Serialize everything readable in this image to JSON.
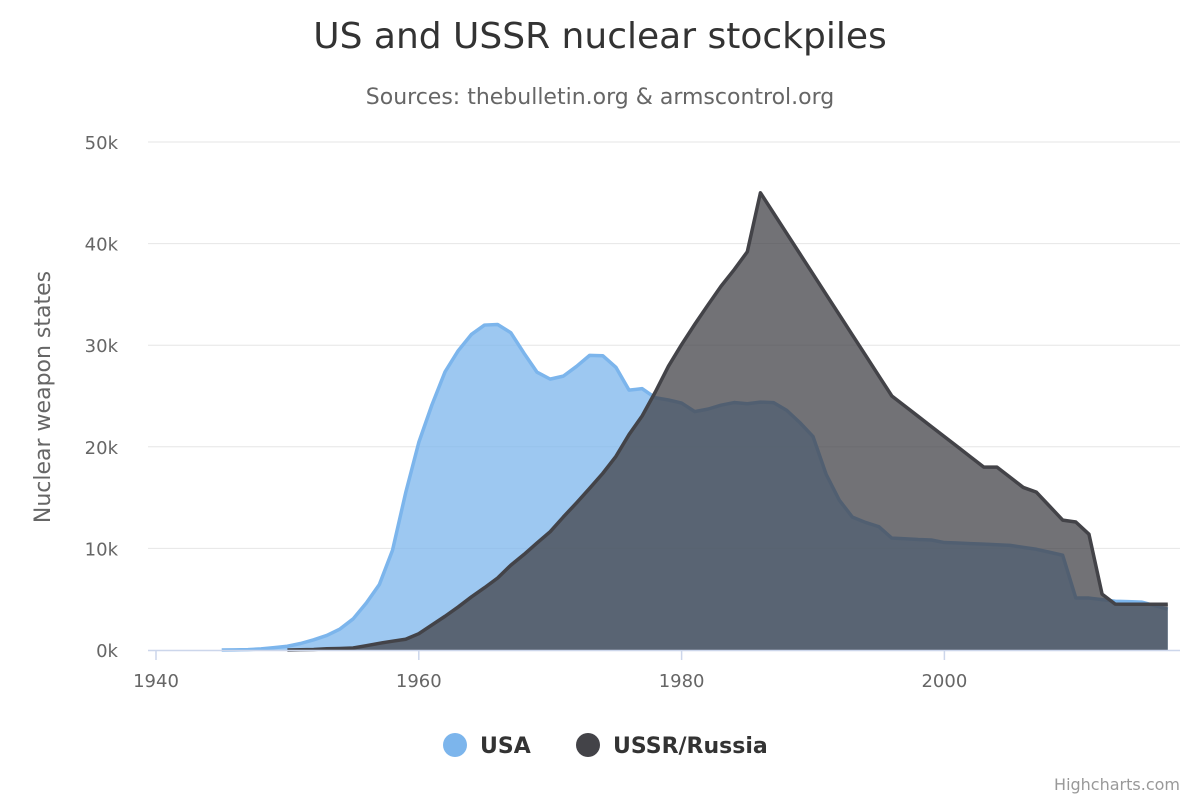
{
  "title": "US and USSR nuclear stockpiles",
  "subtitle": "Sources: thebulletin.org & armscontrol.org",
  "credits": "Highcharts.com",
  "colors": {
    "usa_fill": "#7cb5ec",
    "usa_line": "#7cb5ec",
    "ussr_fill": "#434348",
    "ussr_line": "#434348"
  },
  "chart_data": {
    "type": "area",
    "title": "US and USSR nuclear stockpiles",
    "subtitle": "Sources: thebulletin.org & armscontrol.org",
    "ylabel": "Nuclear weapon states",
    "xlim": [
      1939,
      2018
    ],
    "ylim": [
      0,
      50000
    ],
    "x_ticks": [
      "1940",
      "1960",
      "1980",
      "2000"
    ],
    "x_tick_values": [
      1940,
      1960,
      1980,
      2000
    ],
    "y_ticks": [
      "0k",
      "10k",
      "20k",
      "30k",
      "40k",
      "50k"
    ],
    "y_tick_values": [
      0,
      10000,
      20000,
      30000,
      40000,
      50000
    ],
    "grid": true,
    "legend_position": "bottom-center",
    "series": [
      {
        "name": "USA",
        "x_start": 1945,
        "values": [
          6,
          11,
          32,
          110,
          235,
          369,
          640,
          1005,
          1436,
          2063,
          3057,
          4618,
          6444,
          9822,
          15468,
          20434,
          24126,
          27387,
          29459,
          31056,
          31982,
          32040,
          31233,
          29224,
          27342,
          26662,
          26956,
          27912,
          28999,
          28965,
          27826,
          25579,
          25722,
          24826,
          24605,
          24304,
          23464,
          23708,
          24099,
          24357,
          24237,
          24401,
          24344,
          23586,
          22380,
          21004,
          17287,
          14747,
          13076,
          12555,
          12144,
          11009,
          10950,
          10871,
          10824,
          10577,
          10527,
          10475,
          10421,
          10358,
          10295,
          10104,
          9914,
          9620,
          9326,
          5113,
          5113,
          4954,
          4804,
          4761,
          4717,
          4368,
          4018
        ]
      },
      {
        "name": "USSR/Russia",
        "x_start": 1950,
        "values": [
          5,
          25,
          50,
          120,
          150,
          200,
          426,
          660,
          869,
          1060,
          1605,
          2471,
          3322,
          4238,
          5221,
          6129,
          7089,
          8339,
          9399,
          10538,
          11643,
          13092,
          14478,
          15915,
          17385,
          19055,
          21205,
          23044,
          25393,
          27935,
          30062,
          32049,
          33952,
          35804,
          37431,
          39197,
          45000,
          43000,
          41000,
          39000,
          37000,
          35000,
          33000,
          31000,
          29000,
          27000,
          25000,
          24000,
          23000,
          22000,
          21000,
          20000,
          19000,
          18000,
          18000,
          17000,
          16000,
          15537,
          14162,
          12787,
          12600,
          11400,
          5500,
          4512,
          4502,
          4502,
          4500,
          4500
        ]
      }
    ]
  }
}
